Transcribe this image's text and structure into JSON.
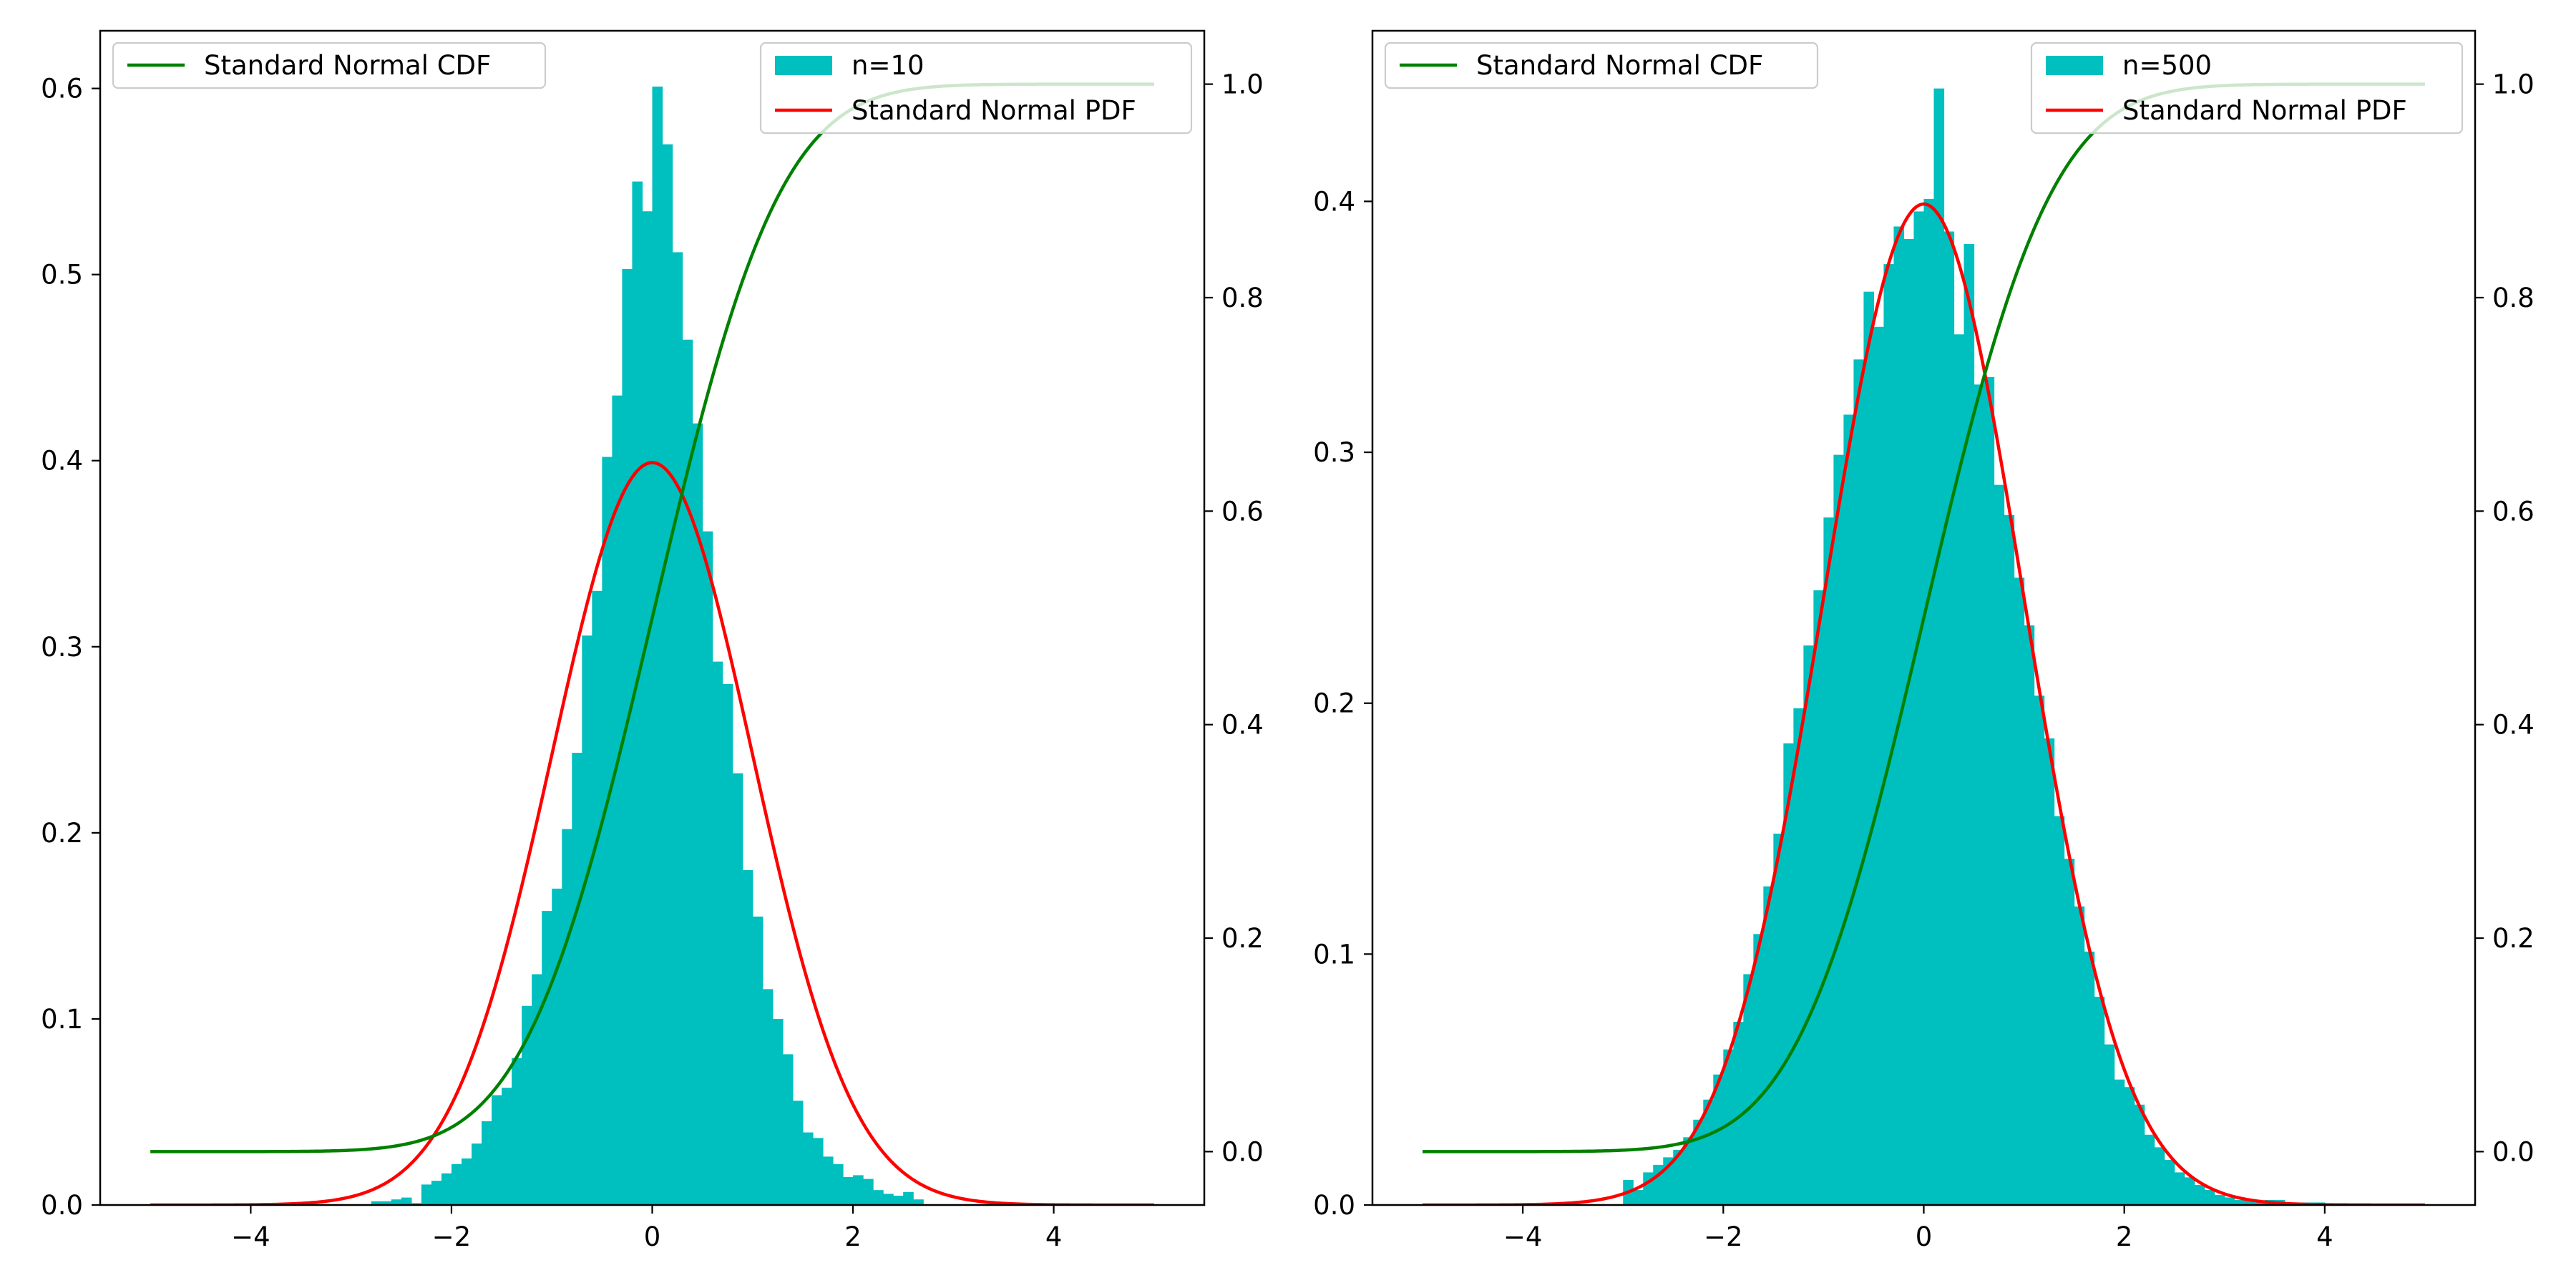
{
  "colors": {
    "histogram": "#00bfbf",
    "pdf": "#ff0000",
    "cdf": "#008000",
    "axes": "#000000",
    "background": "#ffffff"
  },
  "chart_data": [
    {
      "type": "bar",
      "subtype": "histogram-with-twin-axis-lines",
      "histogram": {
        "name": "n=10",
        "bin_width": 0.1,
        "bins": [
          [
            -2.8,
            0.002
          ],
          [
            -2.7,
            0.002
          ],
          [
            -2.6,
            0.003
          ],
          [
            -2.5,
            0.004
          ],
          [
            -2.4,
            0.001
          ],
          [
            -2.3,
            0.011
          ],
          [
            -2.2,
            0.013
          ],
          [
            -2.1,
            0.017
          ],
          [
            -2.0,
            0.022
          ],
          [
            -1.9,
            0.025
          ],
          [
            -1.8,
            0.033
          ],
          [
            -1.7,
            0.045
          ],
          [
            -1.6,
            0.059
          ],
          [
            -1.5,
            0.063
          ],
          [
            -1.4,
            0.079
          ],
          [
            -1.3,
            0.107
          ],
          [
            -1.2,
            0.124
          ],
          [
            -1.1,
            0.158
          ],
          [
            -1.0,
            0.17
          ],
          [
            -0.9,
            0.202
          ],
          [
            -0.8,
            0.243
          ],
          [
            -0.7,
            0.306
          ],
          [
            -0.6,
            0.33
          ],
          [
            -0.5,
            0.402
          ],
          [
            -0.4,
            0.435
          ],
          [
            -0.3,
            0.503
          ],
          [
            -0.2,
            0.55
          ],
          [
            -0.1,
            0.534
          ],
          [
            0.0,
            0.601
          ],
          [
            0.1,
            0.57
          ],
          [
            0.2,
            0.512
          ],
          [
            0.3,
            0.465
          ],
          [
            0.4,
            0.42
          ],
          [
            0.5,
            0.362
          ],
          [
            0.6,
            0.292
          ],
          [
            0.7,
            0.28
          ],
          [
            0.8,
            0.232
          ],
          [
            0.9,
            0.18
          ],
          [
            1.0,
            0.155
          ],
          [
            1.1,
            0.116
          ],
          [
            1.2,
            0.1
          ],
          [
            1.3,
            0.081
          ],
          [
            1.4,
            0.056
          ],
          [
            1.5,
            0.039
          ],
          [
            1.6,
            0.036
          ],
          [
            1.7,
            0.026
          ],
          [
            1.8,
            0.022
          ],
          [
            1.9,
            0.015
          ],
          [
            2.0,
            0.016
          ],
          [
            2.1,
            0.014
          ],
          [
            2.2,
            0.008
          ],
          [
            2.3,
            0.006
          ],
          [
            2.4,
            0.005
          ],
          [
            2.5,
            0.007
          ],
          [
            2.6,
            0.003
          ]
        ]
      },
      "lines": [
        {
          "name": "Standard Normal PDF",
          "function": "normal_pdf",
          "axis": "left"
        },
        {
          "name": "Standard Normal CDF",
          "function": "normal_cdf",
          "axis": "right"
        }
      ],
      "x_domain": [
        -5,
        5
      ],
      "xlim": [
        -5.5,
        5.5
      ],
      "ylim_left": [
        0,
        0.631
      ],
      "ylim_right": [
        -0.05,
        1.05
      ],
      "xticks": [
        -4,
        -2,
        0,
        2,
        4
      ],
      "yticks_left": [
        0.0,
        0.1,
        0.2,
        0.3,
        0.4,
        0.5,
        0.6
      ],
      "yticks_right": [
        0.0,
        0.2,
        0.4,
        0.6,
        0.8,
        1.0
      ],
      "legend_left": {
        "placement": "upper left",
        "entries": [
          "Standard Normal CDF"
        ]
      },
      "legend_right": {
        "placement": "upper right",
        "entries": [
          "n=10",
          "Standard Normal PDF"
        ]
      }
    },
    {
      "type": "bar",
      "subtype": "histogram-with-twin-axis-lines",
      "histogram": {
        "name": "n=500",
        "bin_width": 0.1,
        "bins": [
          [
            -3.0,
            0.01
          ],
          [
            -2.9,
            0.006
          ],
          [
            -2.8,
            0.013
          ],
          [
            -2.7,
            0.016
          ],
          [
            -2.6,
            0.019
          ],
          [
            -2.5,
            0.022
          ],
          [
            -2.4,
            0.027
          ],
          [
            -2.3,
            0.034
          ],
          [
            -2.2,
            0.042
          ],
          [
            -2.1,
            0.052
          ],
          [
            -2.0,
            0.062
          ],
          [
            -1.9,
            0.073
          ],
          [
            -1.8,
            0.092
          ],
          [
            -1.7,
            0.108
          ],
          [
            -1.6,
            0.127
          ],
          [
            -1.5,
            0.148
          ],
          [
            -1.4,
            0.184
          ],
          [
            -1.3,
            0.198
          ],
          [
            -1.2,
            0.223
          ],
          [
            -1.1,
            0.245
          ],
          [
            -1.0,
            0.274
          ],
          [
            -0.9,
            0.299
          ],
          [
            -0.8,
            0.315
          ],
          [
            -0.7,
            0.337
          ],
          [
            -0.6,
            0.364
          ],
          [
            -0.5,
            0.35
          ],
          [
            -0.4,
            0.375
          ],
          [
            -0.3,
            0.39
          ],
          [
            -0.2,
            0.385
          ],
          [
            -0.1,
            0.396
          ],
          [
            0.0,
            0.401
          ],
          [
            0.1,
            0.445
          ],
          [
            0.2,
            0.388
          ],
          [
            0.3,
            0.347
          ],
          [
            0.4,
            0.383
          ],
          [
            0.5,
            0.327
          ],
          [
            0.6,
            0.33
          ],
          [
            0.7,
            0.287
          ],
          [
            0.8,
            0.275
          ],
          [
            0.9,
            0.25
          ],
          [
            1.0,
            0.231
          ],
          [
            1.1,
            0.203
          ],
          [
            1.2,
            0.186
          ],
          [
            1.3,
            0.155
          ],
          [
            1.4,
            0.138
          ],
          [
            1.5,
            0.119
          ],
          [
            1.6,
            0.101
          ],
          [
            1.7,
            0.083
          ],
          [
            1.8,
            0.064
          ],
          [
            1.9,
            0.05
          ],
          [
            2.0,
            0.047
          ],
          [
            2.1,
            0.04
          ],
          [
            2.2,
            0.028
          ],
          [
            2.3,
            0.023
          ],
          [
            2.4,
            0.018
          ],
          [
            2.5,
            0.013
          ],
          [
            2.6,
            0.011
          ],
          [
            2.7,
            0.008
          ],
          [
            2.8,
            0.006
          ],
          [
            2.9,
            0.004
          ],
          [
            3.0,
            0.003
          ],
          [
            3.1,
            0.002
          ],
          [
            3.2,
            0.002
          ],
          [
            3.3,
            0.001
          ],
          [
            3.4,
            0.002
          ],
          [
            3.5,
            0.002
          ],
          [
            3.6,
            0.001
          ],
          [
            3.7,
            0.001
          ],
          [
            3.8,
            0.001
          ],
          [
            3.9,
            0.001
          ]
        ]
      },
      "lines": [
        {
          "name": "Standard Normal PDF",
          "function": "normal_pdf",
          "axis": "left"
        },
        {
          "name": "Standard Normal CDF",
          "function": "normal_cdf",
          "axis": "right"
        }
      ],
      "x_domain": [
        -5,
        5
      ],
      "xlim": [
        -5.5,
        5.5
      ],
      "ylim_left": [
        0,
        0.468
      ],
      "ylim_right": [
        -0.05,
        1.05
      ],
      "xticks": [
        -4,
        -2,
        0,
        2,
        4
      ],
      "yticks_left": [
        0.0,
        0.1,
        0.2,
        0.3,
        0.4
      ],
      "yticks_right": [
        0.0,
        0.2,
        0.4,
        0.6,
        0.8,
        1.0
      ],
      "legend_left": {
        "placement": "upper left",
        "entries": [
          "Standard Normal CDF"
        ]
      },
      "legend_right": {
        "placement": "upper right",
        "entries": [
          "n=500",
          "Standard Normal PDF"
        ]
      }
    }
  ]
}
